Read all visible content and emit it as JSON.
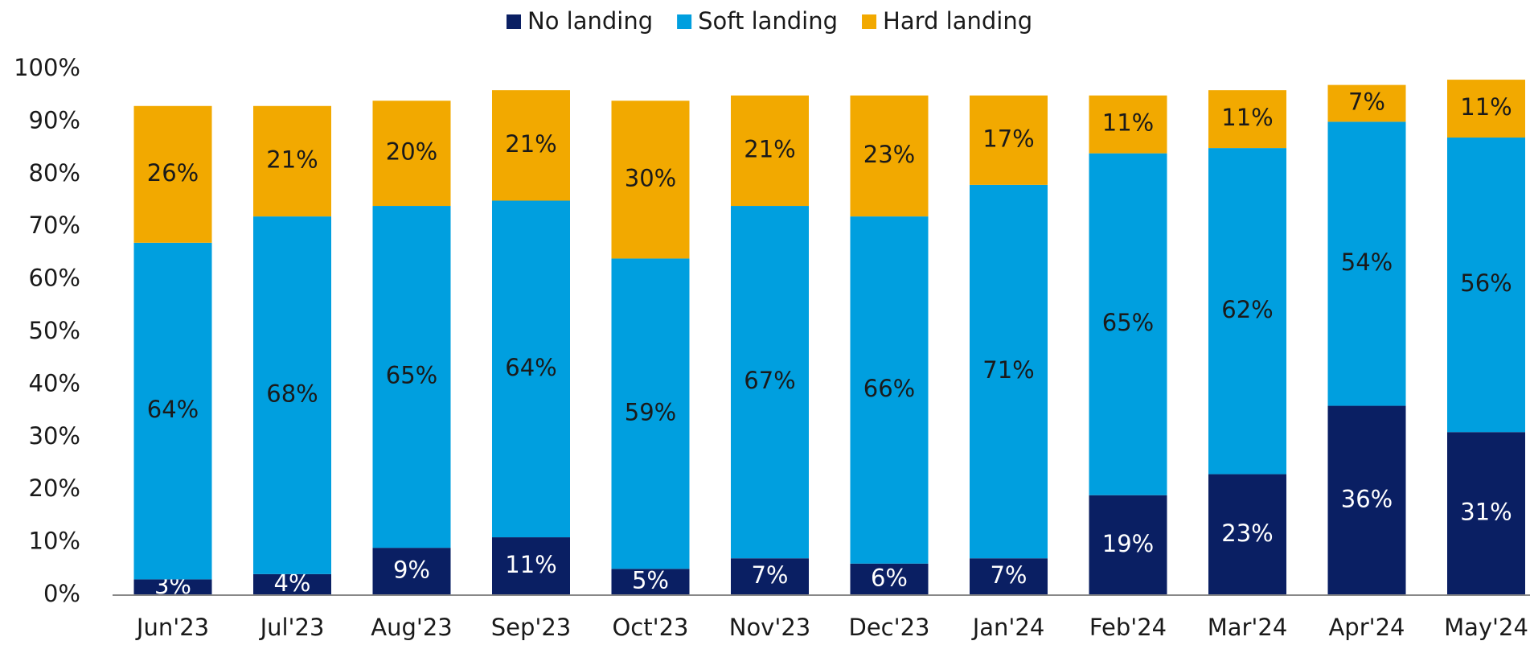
{
  "chart_data": {
    "type": "stacked_bar",
    "categories": [
      "Jun'23",
      "Jul'23",
      "Aug'23",
      "Sep'23",
      "Oct'23",
      "Nov'23",
      "Dec'23",
      "Jan'24",
      "Feb'24",
      "Mar'24",
      "Apr'24",
      "May'24"
    ],
    "series": [
      {
        "name": "No landing",
        "color": "#0a1f63",
        "values": [
          3,
          4,
          9,
          11,
          5,
          7,
          6,
          7,
          19,
          23,
          36,
          31
        ],
        "value_labels": [
          "3%",
          "4%",
          "9%",
          "11%",
          "5%",
          "7%",
          "6%",
          "7%",
          "19%",
          "23%",
          "36%",
          "31%"
        ]
      },
      {
        "name": "Soft landing",
        "color": "#009fdf",
        "values": [
          64,
          68,
          65,
          64,
          59,
          67,
          66,
          71,
          65,
          62,
          54,
          56
        ],
        "value_labels": [
          "64%",
          "68%",
          "65%",
          "64%",
          "59%",
          "67%",
          "66%",
          "71%",
          "65%",
          "62%",
          "54%",
          "56%"
        ]
      },
      {
        "name": "Hard landing",
        "color": "#f2a900",
        "values": [
          26,
          21,
          20,
          21,
          30,
          21,
          23,
          17,
          11,
          11,
          7,
          11
        ],
        "value_labels": [
          "26%",
          "21%",
          "20%",
          "21%",
          "30%",
          "21%",
          "23%",
          "17%",
          "11%",
          "11%",
          "7%",
          "11%"
        ]
      }
    ],
    "ylim": [
      0,
      100
    ],
    "yticks": [
      {
        "value": 0,
        "label": "0%"
      },
      {
        "value": 10,
        "label": "10%"
      },
      {
        "value": 20,
        "label": "20%"
      },
      {
        "value": 30,
        "label": "30%"
      },
      {
        "value": 40,
        "label": "40%"
      },
      {
        "value": 50,
        "label": "50%"
      },
      {
        "value": 60,
        "label": "60%"
      },
      {
        "value": 70,
        "label": "70%"
      },
      {
        "value": 80,
        "label": "80%"
      },
      {
        "value": 90,
        "label": "90%"
      },
      {
        "value": 100,
        "label": "100%"
      }
    ],
    "legend": "top"
  }
}
